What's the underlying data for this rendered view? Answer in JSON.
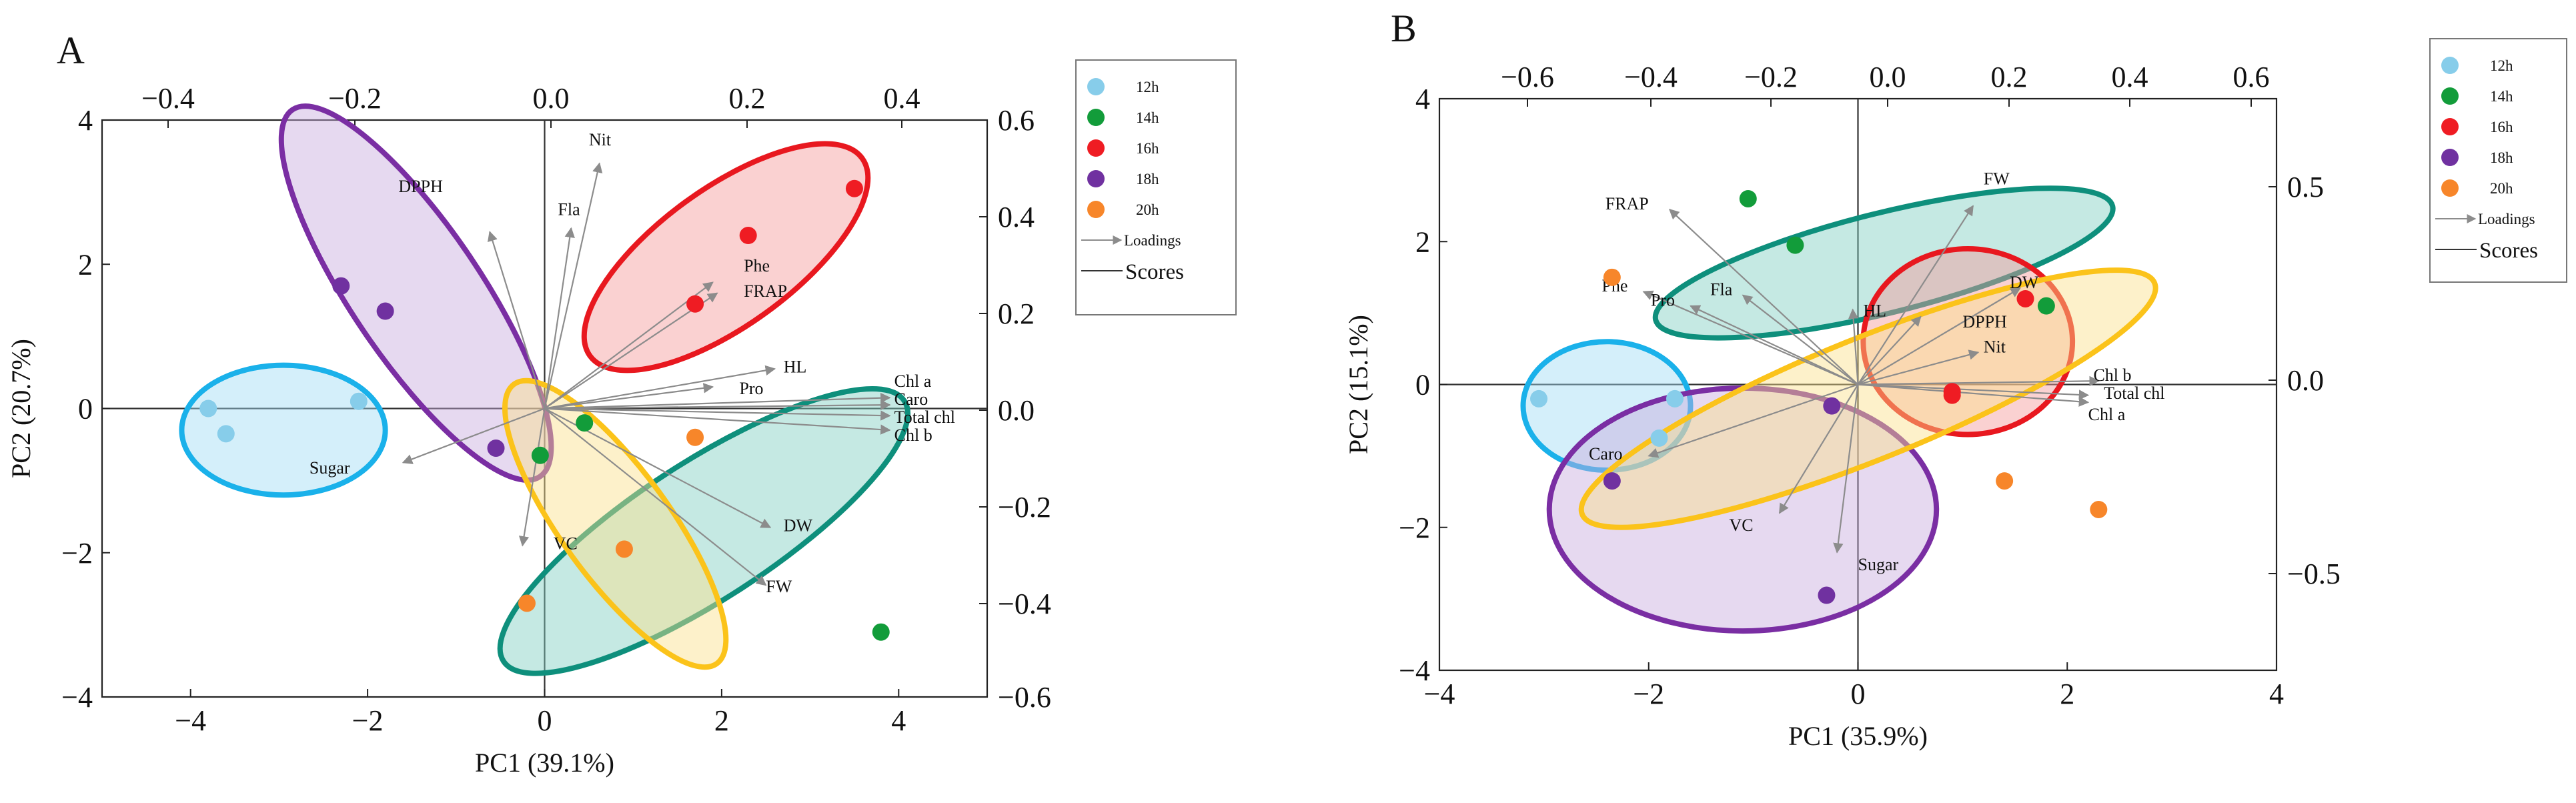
{
  "colors": {
    "12h": "#87cdea",
    "14h": "#129c3a",
    "16h": "#ef1c23",
    "18h": "#7031a0",
    "20h": "#f7862a",
    "loading": "#8c8c8c"
  },
  "chart_data": [
    {
      "type": "scatter",
      "panel_label": "A",
      "xlabel": "PC1 (39.1%)",
      "ylabel": "PC2 (20.7%)",
      "xlim": [
        -5,
        5
      ],
      "ylim": [
        -4,
        4
      ],
      "xticks": [
        "−4",
        "−2",
        "0",
        "2",
        "4"
      ],
      "yticks": [
        "4",
        "2",
        "0",
        "−2",
        "−4"
      ],
      "top_ticks": [
        "−0.4",
        "−0.2",
        "0.0",
        "0.2",
        "0.4"
      ],
      "right_ticks": [
        "0.6",
        "0.4",
        "0.2",
        "0.0",
        "−0.2",
        "−0.4",
        "−0.6"
      ],
      "legend": {
        "entries": [
          "12h",
          "14h",
          "16h",
          "18h",
          "20h"
        ],
        "loadings_label": "Loadings",
        "scores_label": "Scores",
        "position": "top-right"
      },
      "series": [
        {
          "name": "12h",
          "points": [
            [
              -3.8,
              0.0
            ],
            [
              -3.6,
              -0.35
            ],
            [
              -2.1,
              0.1
            ]
          ]
        },
        {
          "name": "14h",
          "points": [
            [
              -0.05,
              -0.65
            ],
            [
              0.45,
              -0.2
            ],
            [
              3.8,
              -3.1
            ]
          ]
        },
        {
          "name": "16h",
          "points": [
            [
              1.7,
              1.45
            ],
            [
              2.3,
              2.4
            ],
            [
              3.5,
              3.05
            ]
          ]
        },
        {
          "name": "18h",
          "points": [
            [
              -2.3,
              1.7
            ],
            [
              -1.8,
              1.35
            ],
            [
              -0.55,
              -0.55
            ]
          ]
        },
        {
          "name": "20h",
          "points": [
            [
              1.7,
              -0.4
            ],
            [
              0.9,
              -1.95
            ],
            [
              -0.2,
              -2.7
            ]
          ]
        }
      ],
      "ellipses": [
        {
          "group": "12h",
          "cx": -2.95,
          "cy": -0.3,
          "rx": 1.15,
          "ry": 0.9,
          "angle": 0
        },
        {
          "group": "14h",
          "cx": 1.8,
          "cy": -1.7,
          "rx": 2.7,
          "ry": 0.95,
          "angle": -33
        },
        {
          "group": "16h",
          "cx": 2.05,
          "cy": 2.1,
          "rx": 1.9,
          "ry": 0.95,
          "angle": -36
        },
        {
          "group": "18h",
          "cx": -1.45,
          "cy": 1.6,
          "rx": 2.5,
          "ry": 0.9,
          "angle": 56
        },
        {
          "group": "20h",
          "cx": 0.8,
          "cy": -1.6,
          "rx": 1.95,
          "ry": 0.75,
          "angle": 54
        }
      ],
      "loadings": [
        {
          "label": "DPPH",
          "x": -0.62,
          "y": 2.45,
          "lx": -1.15,
          "ly": 3.0
        },
        {
          "label": "Nit",
          "x": 0.62,
          "y": 3.4,
          "lx": 0.5,
          "ly": 3.65
        },
        {
          "label": "Fla",
          "x": 0.3,
          "y": 2.5,
          "lx": 0.15,
          "ly": 2.68
        },
        {
          "label": "Phe",
          "x": 1.9,
          "y": 1.75,
          "lx": 2.25,
          "ly": 1.9
        },
        {
          "label": "FRAP",
          "x": 1.95,
          "y": 1.6,
          "lx": 2.25,
          "ly": 1.55
        },
        {
          "label": "HL",
          "x": 2.6,
          "y": 0.55,
          "lx": 2.7,
          "ly": 0.5
        },
        {
          "label": "Pro",
          "x": 1.9,
          "y": 0.3,
          "lx": 2.2,
          "ly": 0.2
        },
        {
          "label": "Chl a",
          "x": 3.9,
          "y": 0.15,
          "lx": 3.95,
          "ly": 0.3
        },
        {
          "label": "Caro",
          "x": 3.9,
          "y": 0.05,
          "lx": 3.95,
          "ly": 0.05
        },
        {
          "label": "Total chl",
          "x": 3.9,
          "y": -0.1,
          "lx": 3.95,
          "ly": -0.2
        },
        {
          "label": "Chl b",
          "x": 3.9,
          "y": -0.3,
          "lx": 3.95,
          "ly": -0.45
        },
        {
          "label": "DW",
          "x": 2.55,
          "y": -1.65,
          "lx": 2.7,
          "ly": -1.7
        },
        {
          "label": "FW",
          "x": 2.5,
          "y": -2.45,
          "lx": 2.5,
          "ly": -2.55
        },
        {
          "label": "VC",
          "x": -0.25,
          "y": -1.9,
          "lx": 0.1,
          "ly": -1.95
        },
        {
          "label": "Sugar",
          "x": -1.6,
          "y": -0.75,
          "lx": -2.2,
          "ly": -0.9
        }
      ]
    },
    {
      "type": "scatter",
      "panel_label": "B",
      "xlabel": "PC1 (35.9%)",
      "ylabel": "PC2 (15.1%)",
      "xlim": [
        -4,
        4
      ],
      "ylim": [
        -4,
        4
      ],
      "xticks": [
        "−4",
        "−2",
        "0",
        "2",
        "4"
      ],
      "yticks": [
        "4",
        "2",
        "0",
        "−2",
        "−4"
      ],
      "top_ticks": [
        "−0.6",
        "−0.4",
        "−0.2",
        "0.0",
        "0.2",
        "0.4",
        "0.6"
      ],
      "right_ticks": [
        "0.5",
        "0.0",
        "−0.5"
      ],
      "legend": {
        "entries": [
          "12h",
          "14h",
          "16h",
          "18h",
          "20h"
        ],
        "loadings_label": "Loadings",
        "scores_label": "Scores",
        "position": "top-right"
      },
      "series": [
        {
          "name": "12h",
          "points": [
            [
              -3.05,
              -0.2
            ],
            [
              -1.75,
              -0.2
            ],
            [
              -1.9,
              -0.75
            ]
          ]
        },
        {
          "name": "14h",
          "points": [
            [
              -1.05,
              2.6
            ],
            [
              -0.6,
              1.95
            ],
            [
              1.8,
              1.1
            ]
          ]
        },
        {
          "name": "16h",
          "points": [
            [
              1.6,
              1.2
            ],
            [
              0.9,
              -0.15
            ],
            [
              0.9,
              -0.1
            ]
          ]
        },
        {
          "name": "18h",
          "points": [
            [
              -2.35,
              -1.35
            ],
            [
              -0.25,
              -0.3
            ],
            [
              -0.3,
              -2.95
            ]
          ]
        },
        {
          "name": "20h",
          "points": [
            [
              -2.35,
              1.5
            ],
            [
              1.4,
              -1.35
            ],
            [
              2.3,
              -1.75
            ]
          ]
        }
      ],
      "ellipses": [
        {
          "group": "12h",
          "cx": -2.4,
          "cy": -0.3,
          "rx": 0.8,
          "ry": 0.9,
          "angle": 0
        },
        {
          "group": "14h",
          "cx": 0.25,
          "cy": 1.7,
          "rx": 2.25,
          "ry": 0.7,
          "angle": -14
        },
        {
          "group": "16h",
          "cx": 1.05,
          "cy": 0.6,
          "rx": 1.0,
          "ry": 1.3,
          "angle": 0
        },
        {
          "group": "18h",
          "cx": -1.1,
          "cy": -1.75,
          "rx": 1.85,
          "ry": 1.7,
          "angle": 0
        },
        {
          "group": "20h",
          "cx": 0.1,
          "cy": -0.2,
          "rx": 2.95,
          "ry": 0.85,
          "angle": -22
        }
      ],
      "loadings": [
        {
          "label": "FW",
          "x": 1.1,
          "y": 2.5,
          "lx": 1.2,
          "ly": 2.8
        },
        {
          "label": "FRAP",
          "x": -1.8,
          "y": 2.45,
          "lx": -2.0,
          "ly": 2.45
        },
        {
          "label": "DW",
          "x": 1.55,
          "y": 1.35,
          "lx": 1.45,
          "ly": 1.35
        },
        {
          "label": "Phe",
          "x": -2.05,
          "y": 1.3,
          "lx": -2.2,
          "ly": 1.3
        },
        {
          "label": "Pro",
          "x": -1.6,
          "y": 1.1,
          "lx": -1.75,
          "ly": 1.1
        },
        {
          "label": "Fla",
          "x": -1.1,
          "y": 1.25,
          "lx": -1.2,
          "ly": 1.25
        },
        {
          "label": "HL",
          "x": -0.05,
          "y": 1.05,
          "lx": 0.05,
          "ly": 0.95
        },
        {
          "label": "DPPH",
          "x": 0.6,
          "y": 0.95,
          "lx": 1.0,
          "ly": 0.8
        },
        {
          "label": "Nit",
          "x": 1.15,
          "y": 0.45,
          "lx": 1.2,
          "ly": 0.45
        },
        {
          "label": "Chl b",
          "x": 2.3,
          "y": 0.05,
          "lx": 2.25,
          "ly": 0.05
        },
        {
          "label": "Total chl",
          "x": 2.2,
          "y": -0.15,
          "lx": 2.35,
          "ly": -0.2
        },
        {
          "label": "Chl a",
          "x": 2.2,
          "y": -0.25,
          "lx": 2.2,
          "ly": -0.5
        },
        {
          "label": "Caro",
          "x": -2.0,
          "y": -1.0,
          "lx": -2.25,
          "ly": -1.05
        },
        {
          "label": "VC",
          "x": -0.75,
          "y": -1.8,
          "lx": -1.0,
          "ly": -2.05
        },
        {
          "label": "Sugar",
          "x": -0.2,
          "y": -2.35,
          "lx": 0.0,
          "ly": -2.6
        }
      ]
    }
  ]
}
